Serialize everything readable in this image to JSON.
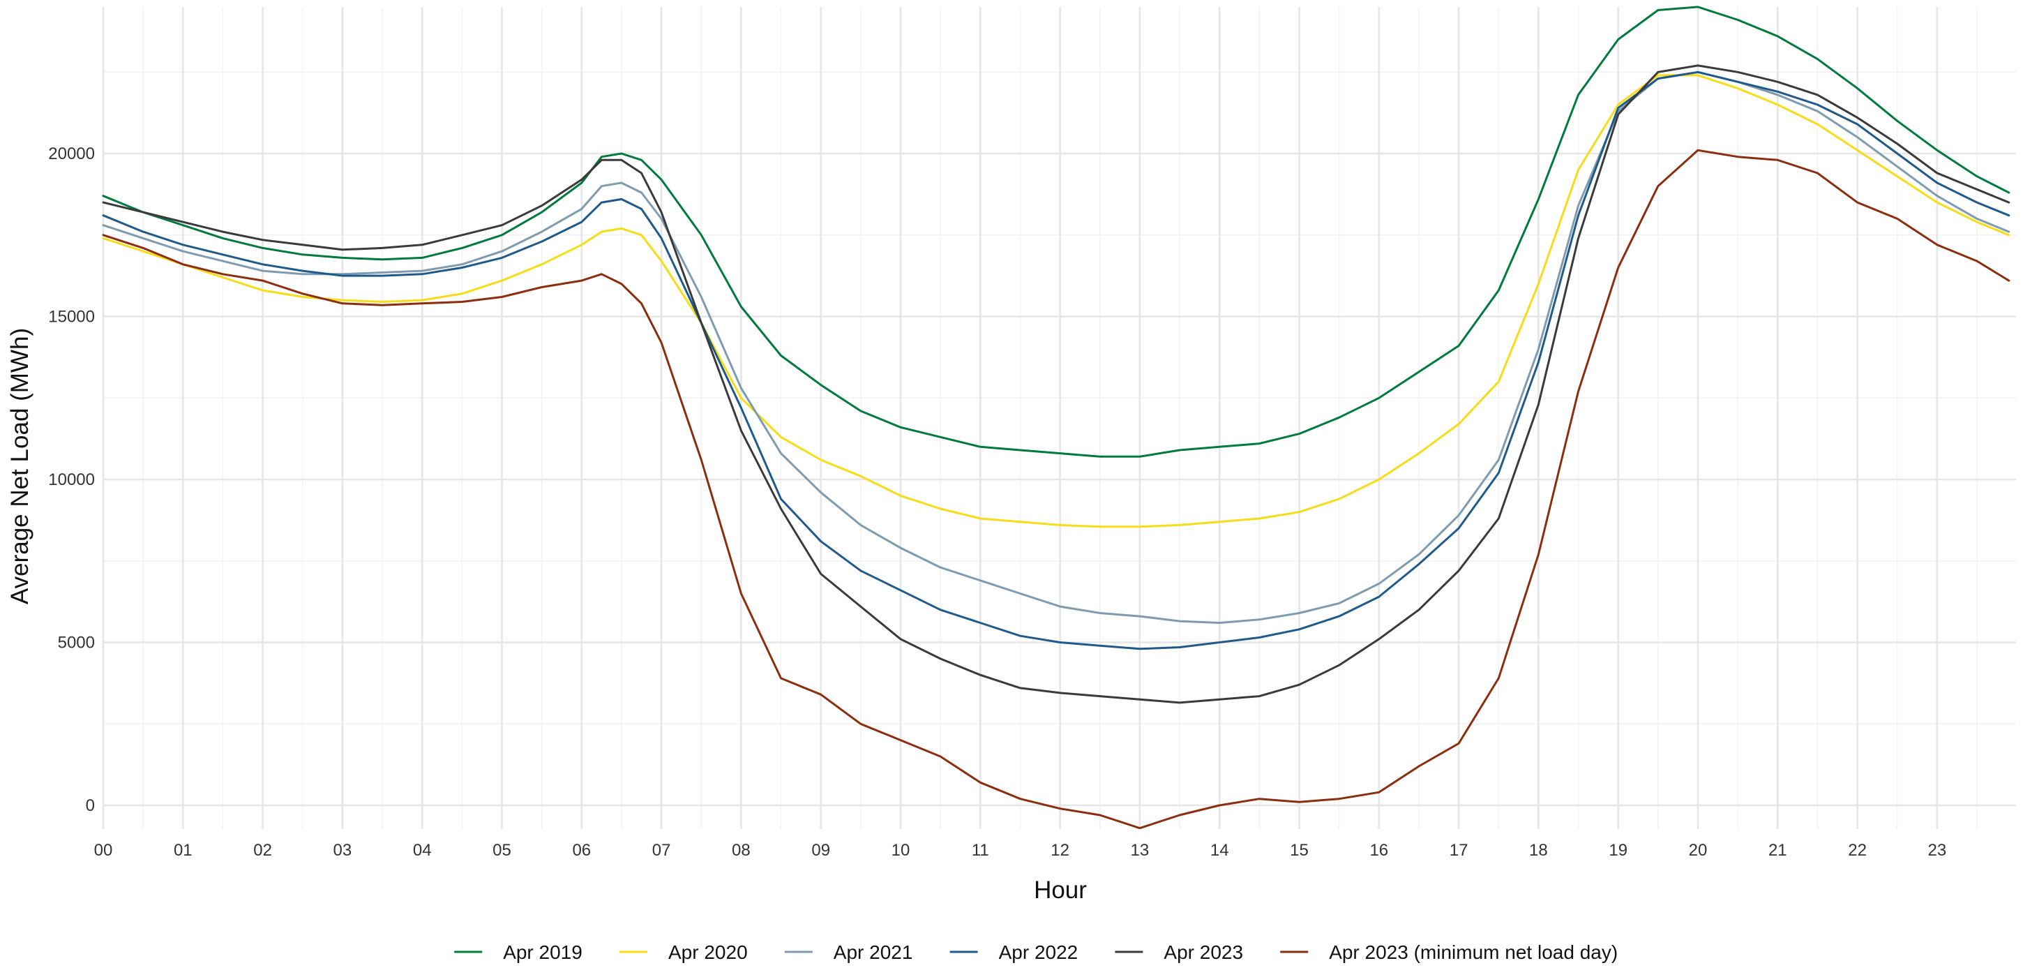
{
  "chart_data": {
    "type": "line",
    "title": "",
    "xlabel": "Hour",
    "ylabel": "Average Net Load (MWh)",
    "xlim": [
      0,
      23.9
    ],
    "ylim": [
      -800,
      24500
    ],
    "grid": true,
    "legend_position": "bottom",
    "x_ticks": [
      "00",
      "01",
      "02",
      "03",
      "04",
      "05",
      "06",
      "07",
      "08",
      "09",
      "10",
      "11",
      "12",
      "13",
      "14",
      "15",
      "16",
      "17",
      "18",
      "19",
      "20",
      "21",
      "22",
      "23"
    ],
    "y_ticks": [
      0,
      5000,
      10000,
      15000,
      20000
    ],
    "x": [
      0,
      0.5,
      1,
      1.5,
      2,
      2.5,
      3,
      3.5,
      4,
      4.5,
      5,
      5.5,
      6,
      6.25,
      6.5,
      6.75,
      7,
      7.5,
      8,
      8.5,
      9,
      9.5,
      10,
      10.5,
      11,
      11.5,
      12,
      12.5,
      13,
      13.5,
      14,
      14.5,
      15,
      15.5,
      16,
      16.5,
      17,
      17.5,
      18,
      18.5,
      19,
      19.5,
      20,
      20.5,
      21,
      21.5,
      22,
      22.5,
      23,
      23.5,
      23.9
    ],
    "series": [
      {
        "name": "Apr 2019",
        "color": "#007A3D",
        "values": [
          18700,
          18200,
          17800,
          17400,
          17100,
          16900,
          16800,
          16750,
          16800,
          17100,
          17500,
          18200,
          19100,
          19900,
          20000,
          19800,
          19200,
          17500,
          15300,
          13800,
          12900,
          12100,
          11600,
          11300,
          11000,
          10900,
          10800,
          10700,
          10700,
          10900,
          11000,
          11100,
          11400,
          11900,
          12500,
          13300,
          14100,
          15800,
          18600,
          21800,
          23500,
          24400,
          24500,
          24100,
          23600,
          22900,
          22000,
          21000,
          20100,
          19300,
          18800
        ]
      },
      {
        "name": "Apr 2020",
        "color": "#F7DC18",
        "values": [
          17400,
          17000,
          16600,
          16200,
          15800,
          15600,
          15500,
          15450,
          15500,
          15700,
          16100,
          16600,
          17200,
          17600,
          17700,
          17500,
          16700,
          14800,
          12500,
          11300,
          10600,
          10100,
          9500,
          9100,
          8800,
          8700,
          8600,
          8550,
          8550,
          8600,
          8700,
          8800,
          9000,
          9400,
          10000,
          10800,
          11700,
          13000,
          16000,
          19500,
          21500,
          22400,
          22400,
          22000,
          21500,
          20900,
          20100,
          19300,
          18500,
          17900,
          17500
        ]
      },
      {
        "name": "Apr 2021",
        "color": "#7F9BAF",
        "values": [
          17800,
          17400,
          17000,
          16700,
          16400,
          16300,
          16300,
          16350,
          16400,
          16600,
          17000,
          17600,
          18300,
          19000,
          19100,
          18800,
          18000,
          15600,
          12800,
          10800,
          9600,
          8600,
          7900,
          7300,
          6900,
          6500,
          6100,
          5900,
          5800,
          5650,
          5600,
          5700,
          5900,
          6200,
          6800,
          7700,
          8900,
          10600,
          14000,
          18400,
          21300,
          22300,
          22500,
          22200,
          21800,
          21300,
          20500,
          19600,
          18700,
          18000,
          17600
        ]
      },
      {
        "name": "Apr 2022",
        "color": "#1F5A8A",
        "values": [
          18100,
          17600,
          17200,
          16900,
          16600,
          16400,
          16250,
          16250,
          16300,
          16500,
          16800,
          17300,
          17900,
          18500,
          18600,
          18300,
          17400,
          14800,
          12200,
          9400,
          8100,
          7200,
          6600,
          6000,
          5600,
          5200,
          5000,
          4900,
          4800,
          4850,
          5000,
          5150,
          5400,
          5800,
          6400,
          7400,
          8500,
          10200,
          13600,
          18100,
          21400,
          22300,
          22500,
          22200,
          21900,
          21500,
          20900,
          20000,
          19100,
          18500,
          18100
        ]
      },
      {
        "name": "Apr 2023",
        "color": "#3A3A3A",
        "values": [
          18500,
          18200,
          17900,
          17600,
          17350,
          17200,
          17050,
          17100,
          17200,
          17500,
          17800,
          18400,
          19200,
          19800,
          19800,
          19400,
          18200,
          14800,
          11500,
          9100,
          7100,
          6100,
          5100,
          4500,
          4000,
          3600,
          3450,
          3350,
          3250,
          3150,
          3250,
          3350,
          3700,
          4300,
          5100,
          6000,
          7200,
          8800,
          12300,
          17400,
          21200,
          22500,
          22700,
          22500,
          22200,
          21800,
          21100,
          20300,
          19400,
          18900,
          18500
        ]
      },
      {
        "name": "Apr 2023 (minimum net load day)",
        "color": "#8B2E10",
        "values": [
          17500,
          17100,
          16600,
          16300,
          16100,
          15700,
          15400,
          15350,
          15400,
          15450,
          15600,
          15900,
          16100,
          16300,
          16000,
          15400,
          14200,
          10600,
          6500,
          3900,
          3400,
          2500,
          2000,
          1500,
          700,
          200,
          -100,
          -300,
          -700,
          -300,
          0,
          200,
          100,
          200,
          400,
          1200,
          1900,
          3900,
          7700,
          12700,
          16500,
          19000,
          20100,
          19900,
          19800,
          19400,
          18500,
          18000,
          17200,
          16700,
          16100
        ]
      }
    ]
  }
}
